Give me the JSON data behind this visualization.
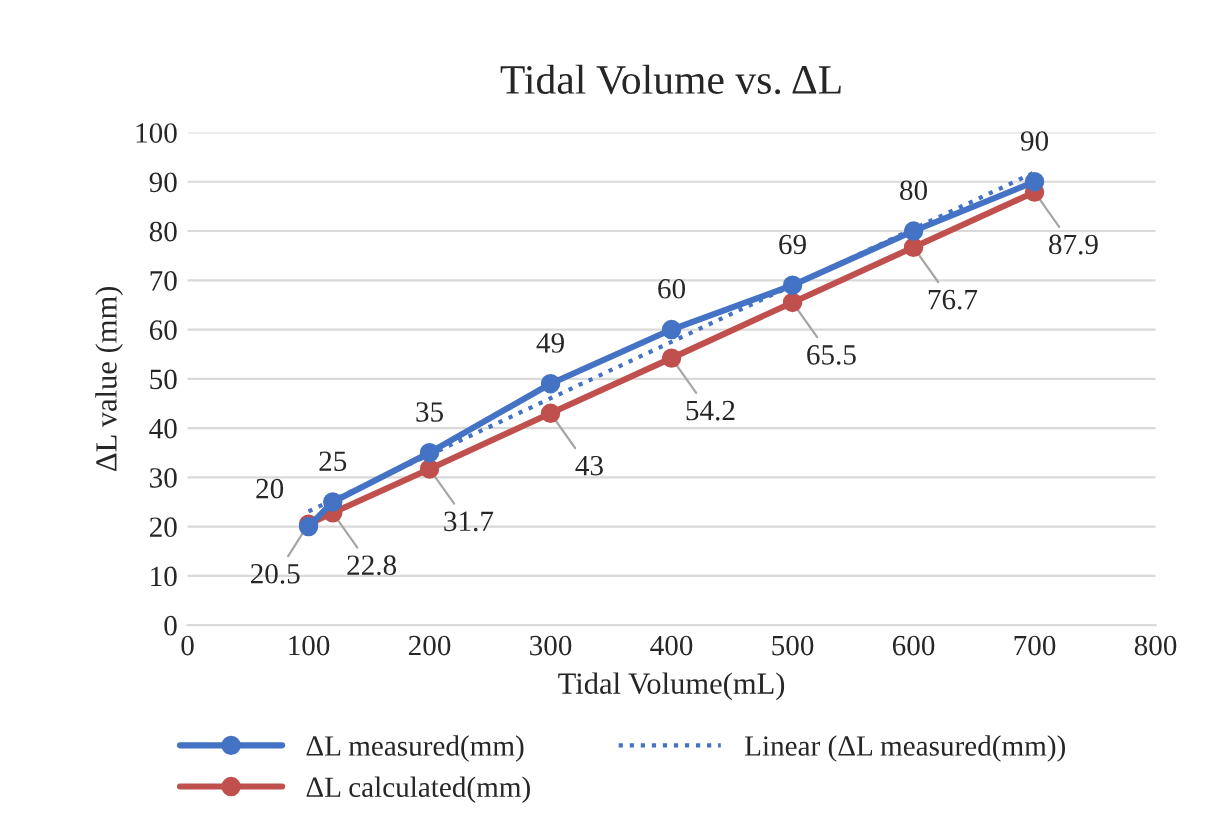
{
  "chart_data": {
    "type": "line",
    "title": "Tidal Volume vs. ΔL",
    "xlabel": "Tidal Volume(mL)",
    "ylabel": "ΔL value (mm)",
    "xlim": [
      0,
      800
    ],
    "xticks": [
      0,
      100,
      200,
      300,
      400,
      500,
      600,
      700,
      800
    ],
    "ylim": [
      0,
      100
    ],
    "yticks": [
      0,
      10,
      20,
      30,
      40,
      50,
      60,
      70,
      80,
      90,
      100
    ],
    "grid": "y",
    "legend": "bottom",
    "marker": "circle",
    "series": [
      {
        "name": "ΔL measured(mm)",
        "color": "#4472c4",
        "x": [
          100,
          120,
          200,
          300,
          400,
          500,
          600,
          700
        ],
        "values": [
          20,
          25,
          35,
          49,
          60,
          69,
          80,
          90
        ],
        "value_labels": [
          "20",
          "25",
          "35",
          "49",
          "60",
          "69",
          "80",
          "90"
        ],
        "line_style": "solid"
      },
      {
        "name": "ΔL calculated(mm)",
        "color": "#c0504d",
        "x": [
          100,
          120,
          200,
          300,
          400,
          500,
          600,
          700
        ],
        "values": [
          20.5,
          22.8,
          31.7,
          43,
          54.2,
          65.5,
          76.7,
          87.9
        ],
        "value_labels": [
          "20.5",
          "22.8",
          "31.7",
          "43",
          "54.2",
          "65.5",
          "76.7",
          "87.9"
        ],
        "line_style": "solid"
      },
      {
        "name": "Linear (ΔL measured(mm))",
        "color": "#4472c4",
        "x": [
          100,
          700
        ],
        "values": [
          23.1,
          91.9
        ],
        "line_style": "dotted",
        "marker": "none"
      }
    ]
  }
}
